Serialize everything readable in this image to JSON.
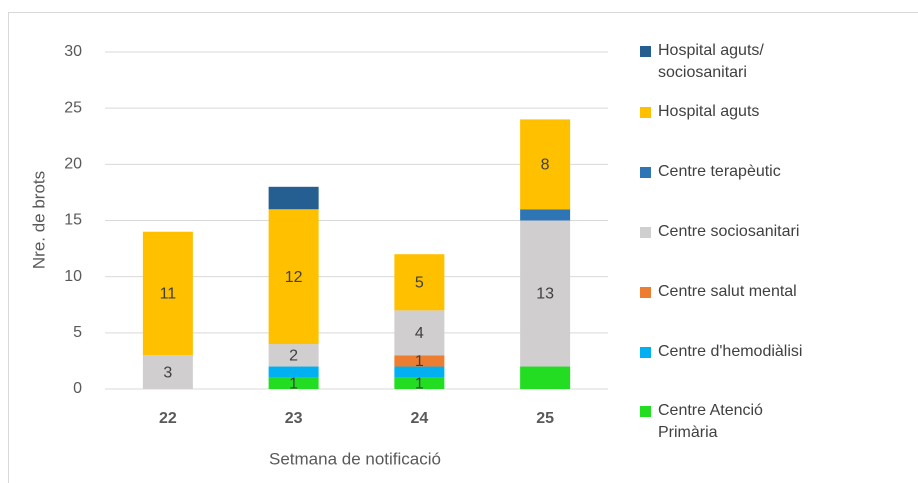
{
  "chart_data": {
    "type": "stacked_bar",
    "x_label": "Setmana de notificació",
    "y_label": "Nre. de brots",
    "categories": [
      "22",
      "23",
      "24",
      "25"
    ],
    "ylim": [
      0,
      30
    ],
    "yticks": [
      0,
      5,
      10,
      15,
      20,
      25,
      30
    ],
    "grid": true,
    "legend": "right",
    "series": [
      {
        "name": "Centre Atenció Primària",
        "color": "#22dd22",
        "values": [
          0,
          1,
          1,
          2
        ],
        "value_labels": [
          null,
          "1",
          "1",
          null
        ]
      },
      {
        "name": "Centre d'hemodiàlisi",
        "color": "#00b0f0",
        "values": [
          0,
          1,
          1,
          0
        ],
        "value_labels": [
          null,
          null,
          null,
          null
        ]
      },
      {
        "name": "Centre salut mental",
        "color": "#ed7d31",
        "values": [
          0,
          0,
          1,
          0
        ],
        "value_labels": [
          null,
          null,
          "1",
          null
        ]
      },
      {
        "name": "Centre sociosanitari",
        "color": "#d0cece",
        "values": [
          3,
          2,
          4,
          13
        ],
        "value_labels": [
          "3",
          "2",
          "4",
          "13"
        ]
      },
      {
        "name": "Centre terapèutic",
        "color": "#2e75b6",
        "values": [
          0,
          0,
          0,
          1
        ],
        "value_labels": [
          null,
          null,
          null,
          null
        ]
      },
      {
        "name": "Hospital aguts",
        "color": "#ffc000",
        "values": [
          11,
          12,
          5,
          8
        ],
        "value_labels": [
          "11",
          "12",
          "5",
          "8"
        ]
      },
      {
        "name": "Hospital aguts/ sociosanitari",
        "color": "#255e91",
        "values": [
          0,
          2,
          0,
          0
        ],
        "value_labels": [
          null,
          null,
          null,
          null
        ]
      }
    ]
  }
}
